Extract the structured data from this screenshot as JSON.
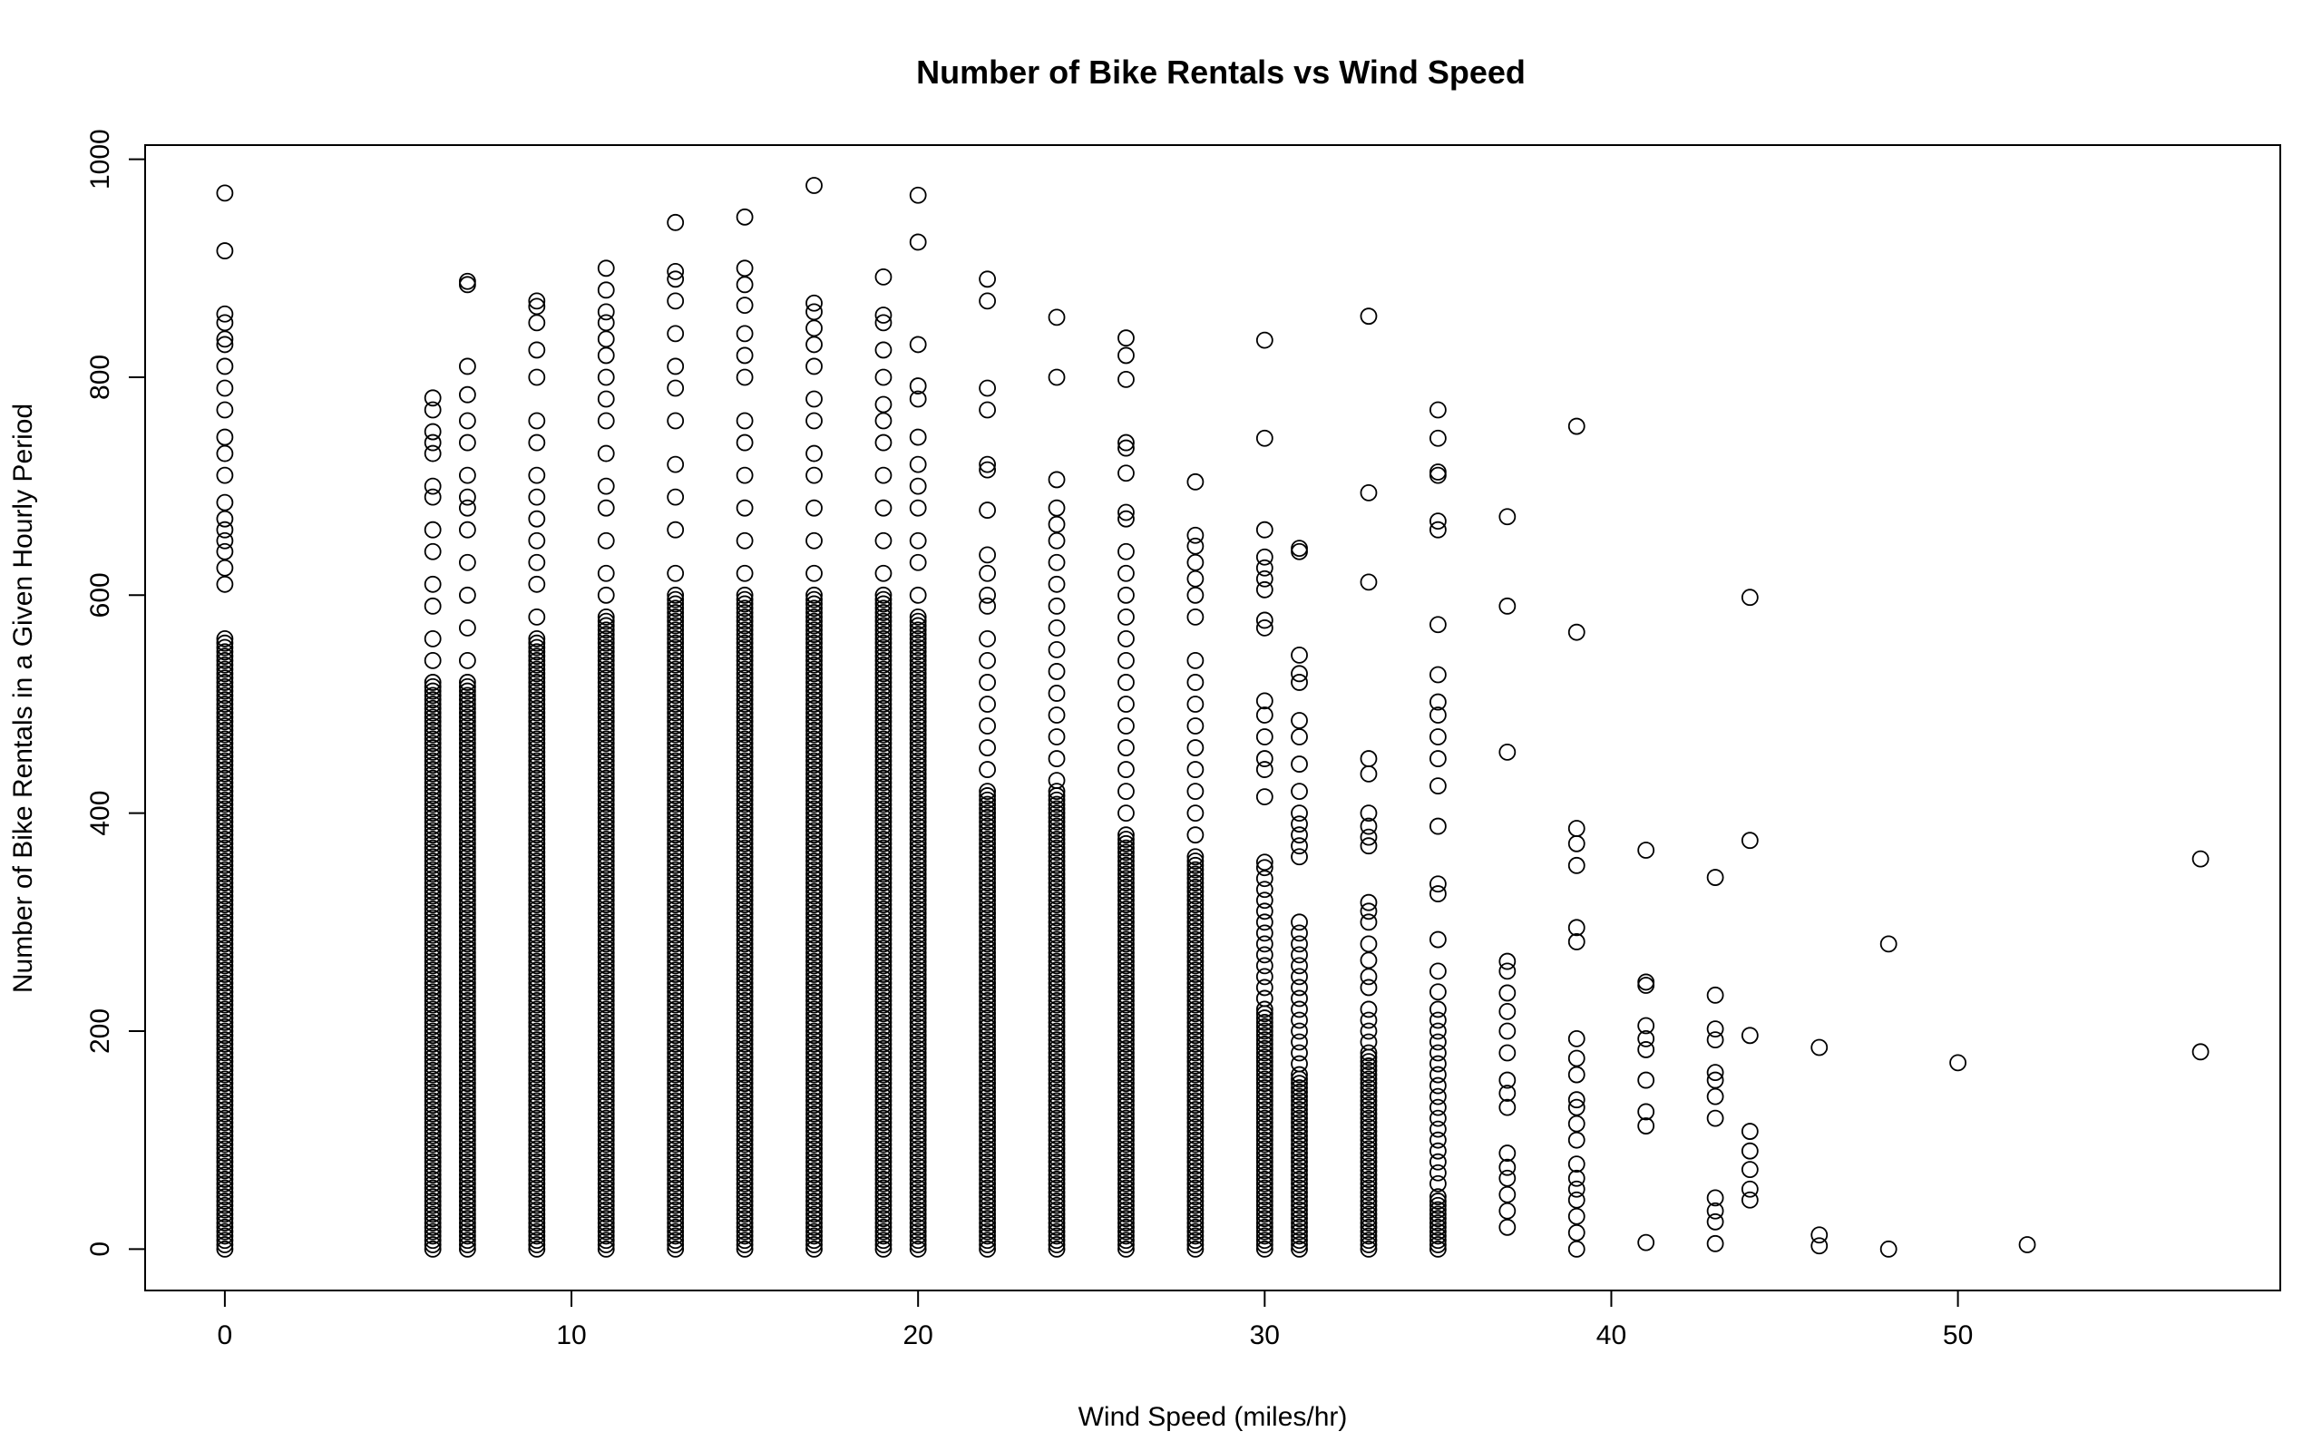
{
  "chart_data": {
    "type": "scatter",
    "title": "Number of Bike Rentals vs Wind Speed",
    "xlabel": "Wind Speed (miles/hr)",
    "ylabel": "Number of Bike Rentals in a Given Hourly Period",
    "xlim": [
      -2.3,
      59.3
    ],
    "ylim": [
      -38,
      1013
    ],
    "x_ticks": [
      0,
      10,
      20,
      30,
      40,
      50
    ],
    "y_ticks": [
      0,
      200,
      400,
      600,
      800,
      1000
    ],
    "marker": "open-circle",
    "grid": false,
    "legend": "none",
    "series_color": "#000000",
    "columns": [
      {
        "x": 0,
        "dense_range": [
          0,
          560
        ],
        "points": [
          610,
          625,
          640,
          650,
          660,
          670,
          685,
          710,
          730,
          745,
          770,
          790,
          810,
          830,
          835,
          850,
          858,
          916,
          969
        ]
      },
      {
        "x": 6,
        "dense_range": [
          0,
          520
        ],
        "points": [
          540,
          560,
          590,
          610,
          640,
          660,
          690,
          700,
          730,
          740,
          750,
          770,
          781
        ]
      },
      {
        "x": 7,
        "dense_range": [
          0,
          520
        ],
        "points": [
          540,
          570,
          600,
          630,
          660,
          680,
          690,
          710,
          740,
          760,
          784,
          810,
          885,
          888
        ]
      },
      {
        "x": 9,
        "dense_range": [
          0,
          560
        ],
        "points": [
          580,
          610,
          630,
          650,
          670,
          690,
          710,
          740,
          760,
          800,
          825,
          850,
          865,
          870
        ]
      },
      {
        "x": 11,
        "dense_range": [
          0,
          580
        ],
        "points": [
          600,
          620,
          650,
          680,
          700,
          730,
          760,
          780,
          800,
          820,
          835,
          850,
          860,
          880,
          900
        ]
      },
      {
        "x": 13,
        "dense_range": [
          0,
          600
        ],
        "points": [
          620,
          660,
          690,
          720,
          760,
          790,
          810,
          840,
          870,
          890,
          897,
          942
        ]
      },
      {
        "x": 15,
        "dense_range": [
          0,
          600
        ],
        "points": [
          620,
          650,
          680,
          710,
          740,
          760,
          800,
          820,
          840,
          866,
          885,
          900,
          947
        ]
      },
      {
        "x": 17,
        "dense_range": [
          0,
          600
        ],
        "points": [
          620,
          650,
          680,
          710,
          730,
          760,
          780,
          810,
          830,
          845,
          860,
          868,
          976
        ]
      },
      {
        "x": 19,
        "dense_range": [
          0,
          600
        ],
        "points": [
          620,
          650,
          680,
          710,
          740,
          760,
          775,
          800,
          825,
          850,
          857,
          892
        ]
      },
      {
        "x": 20,
        "dense_range": [
          0,
          580
        ],
        "points": [
          600,
          630,
          650,
          680,
          700,
          720,
          745,
          780,
          792,
          830,
          924,
          967
        ]
      },
      {
        "x": 22,
        "dense_range": [
          0,
          420
        ],
        "points": [
          440,
          460,
          480,
          500,
          520,
          540,
          560,
          590,
          600,
          620,
          637,
          678,
          715,
          720,
          770,
          790,
          870,
          890
        ]
      },
      {
        "x": 24,
        "dense_range": [
          0,
          420
        ],
        "points": [
          430,
          450,
          470,
          490,
          510,
          530,
          550,
          570,
          590,
          610,
          630,
          650,
          665,
          680,
          706,
          800,
          855
        ]
      },
      {
        "x": 26,
        "dense_range": [
          0,
          380
        ],
        "points": [
          400,
          420,
          440,
          460,
          480,
          500,
          520,
          540,
          560,
          580,
          600,
          620,
          640,
          670,
          676,
          712,
          735,
          740,
          798,
          820,
          836
        ]
      },
      {
        "x": 28,
        "dense_range": [
          0,
          360
        ],
        "points": [
          380,
          400,
          420,
          440,
          460,
          480,
          500,
          520,
          540,
          580,
          600,
          615,
          630,
          645,
          655,
          704
        ]
      },
      {
        "x": 30,
        "dense_range": [
          0,
          220
        ],
        "points": [
          230,
          240,
          250,
          260,
          270,
          280,
          290,
          300,
          310,
          320,
          330,
          340,
          350,
          355,
          415,
          440,
          450,
          470,
          490,
          503,
          570,
          577,
          605,
          615,
          625,
          635,
          660,
          744,
          834
        ]
      },
      {
        "x": 31,
        "dense_range": [
          0,
          160
        ],
        "points": [
          170,
          180,
          190,
          200,
          210,
          220,
          230,
          240,
          250,
          260,
          270,
          280,
          290,
          300,
          360,
          370,
          380,
          390,
          400,
          420,
          445,
          470,
          485,
          520,
          528,
          545,
          640,
          643
        ]
      },
      {
        "x": 33,
        "dense_range": [
          0,
          180
        ],
        "points": [
          190,
          200,
          210,
          220,
          240,
          250,
          265,
          280,
          300,
          310,
          318,
          370,
          378,
          388,
          400,
          436,
          450,
          612,
          694,
          856
        ]
      },
      {
        "x": 35,
        "dense_range": [
          0,
          50
        ],
        "points": [
          60,
          70,
          80,
          90,
          100,
          110,
          120,
          130,
          140,
          150,
          160,
          170,
          180,
          190,
          200,
          210,
          220,
          236,
          255,
          284,
          326,
          335,
          388,
          425,
          450,
          470,
          490,
          502,
          527,
          573,
          660,
          668,
          710,
          713,
          744,
          770
        ]
      },
      {
        "x": 37,
        "dense_range": [],
        "points": [
          20,
          35,
          50,
          65,
          75,
          88,
          130,
          143,
          155,
          180,
          200,
          218,
          235,
          255,
          264,
          456,
          590,
          672
        ]
      },
      {
        "x": 39,
        "dense_range": [],
        "points": [
          0,
          15,
          30,
          45,
          55,
          65,
          78,
          100,
          115,
          130,
          137,
          160,
          175,
          193,
          282,
          295,
          352,
          372,
          386,
          566,
          755
        ]
      },
      {
        "x": 41,
        "dense_range": [],
        "points": [
          6,
          113,
          126,
          155,
          183,
          193,
          205,
          242,
          245,
          366
        ]
      },
      {
        "x": 43,
        "dense_range": [],
        "points": [
          5,
          25,
          35,
          47,
          120,
          140,
          155,
          162,
          192,
          202,
          233,
          341
        ]
      },
      {
        "x": 44,
        "dense_range": [],
        "points": [
          45,
          55,
          73,
          90,
          108,
          196,
          375,
          598
        ]
      },
      {
        "x": 46,
        "dense_range": [],
        "points": [
          3,
          13,
          185
        ]
      },
      {
        "x": 48,
        "dense_range": [],
        "points": [
          0,
          280
        ]
      },
      {
        "x": 50,
        "dense_range": [],
        "points": [
          171
        ]
      },
      {
        "x": 52,
        "dense_range": [],
        "points": [
          4
        ]
      },
      {
        "x": 57,
        "dense_range": [],
        "points": [
          181,
          358
        ]
      }
    ]
  }
}
